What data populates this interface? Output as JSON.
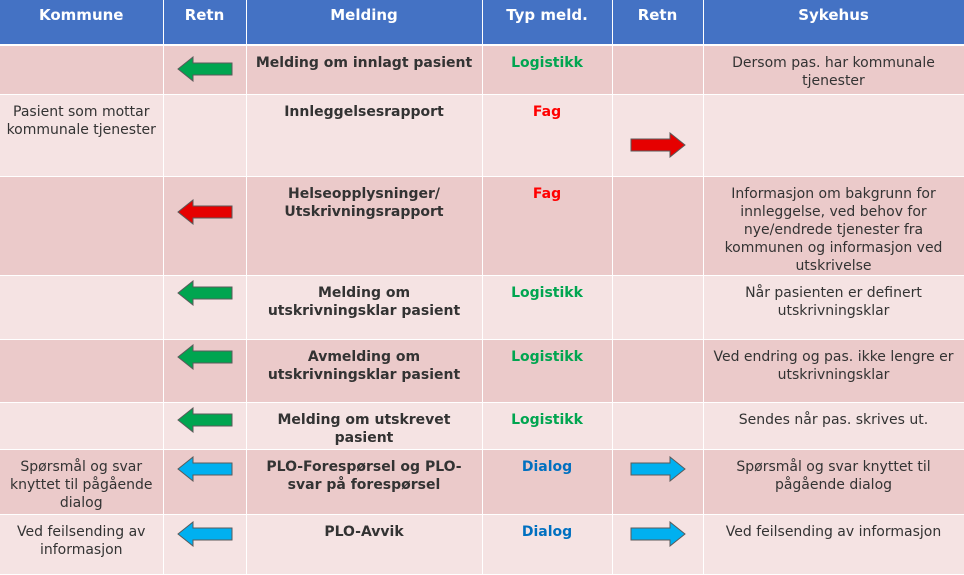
{
  "headers": [
    "Kommune",
    "Retn",
    "Melding",
    "Typ meld.",
    "Retn",
    "Sykehus"
  ],
  "colors": {
    "header_bg": "#4472c4",
    "row_dark": "#ebcaca",
    "row_light": "#f5e3e3",
    "logistikk": "#00a550",
    "fag": "#ff0000",
    "dialog": "#0070c0",
    "arrow_green": "#00a550",
    "arrow_red": "#e60000",
    "arrow_blue": "#00b0f0"
  },
  "rows": [
    {
      "kommune": "",
      "retn_left": "arrow-left-green-icon",
      "melding": "Melding  om innlagt pasient",
      "typ": "Logistikk",
      "typ_color": "#00a550",
      "retn_right": "",
      "sykehus": "Dersom pas. har kommunale tjenester"
    },
    {
      "kommune": "Pasient som mottar kommunale tjenester",
      "retn_left": "",
      "melding": "Innleggelsesrapport",
      "typ": "Fag",
      "typ_color": "#ff0000",
      "retn_right": "arrow-right-red-icon",
      "sykehus": ""
    },
    {
      "kommune": "",
      "retn_left": "arrow-left-red-icon",
      "melding": "Helseopplysninger/ Utskrivningsrapport",
      "typ": "Fag",
      "typ_color": "#ff0000",
      "retn_right": "",
      "sykehus": "Informasjon om bakgrunn  for innleggelse,  ved behov for nye/endrede  tjenester fra kommunen og informasjon ved utskrivelse"
    },
    {
      "kommune": "",
      "retn_left": "arrow-left-green-icon",
      "melding": "Melding  om utskrivningsklar  pasient",
      "typ": "Logistikk",
      "typ_color": "#00a550",
      "retn_right": "",
      "sykehus": "Når pasienten  er definert utskrivningsklar"
    },
    {
      "kommune": "",
      "retn_left": "arrow-left-green-icon",
      "melding": "Avmelding  om utskrivningsklar  pasient",
      "typ": "Logistikk",
      "typ_color": "#00a550",
      "retn_right": "",
      "sykehus": "Ved endring  og pas. ikke lengre er utskrivningsklar"
    },
    {
      "kommune": "",
      "retn_left": "arrow-left-green-icon",
      "melding": "Melding  om utskrevet pasient",
      "typ": "Logistikk",
      "typ_color": "#00a550",
      "retn_right": "",
      "sykehus": "Sendes når pas. skrives ut."
    },
    {
      "kommune": "Spørsmål og svar knyttet til pågående dialog",
      "retn_left": "arrow-left-blue-icon",
      "melding": "PLO-Forespørsel og PLO-svar på forespørsel",
      "typ": "Dialog",
      "typ_color": "#0070c0",
      "retn_right": "arrow-right-blue-icon",
      "sykehus": "Spørsmål og svar knyttet til pågående dialog"
    },
    {
      "kommune": "Ved feilsending  av informasjon",
      "retn_left": "arrow-left-blue-icon",
      "melding": "PLO-Avvik",
      "typ": "Dialog",
      "typ_color": "#0070c0",
      "retn_right": "arrow-right-blue-icon",
      "sykehus": "Ved feilsending  av informasjon"
    }
  ]
}
